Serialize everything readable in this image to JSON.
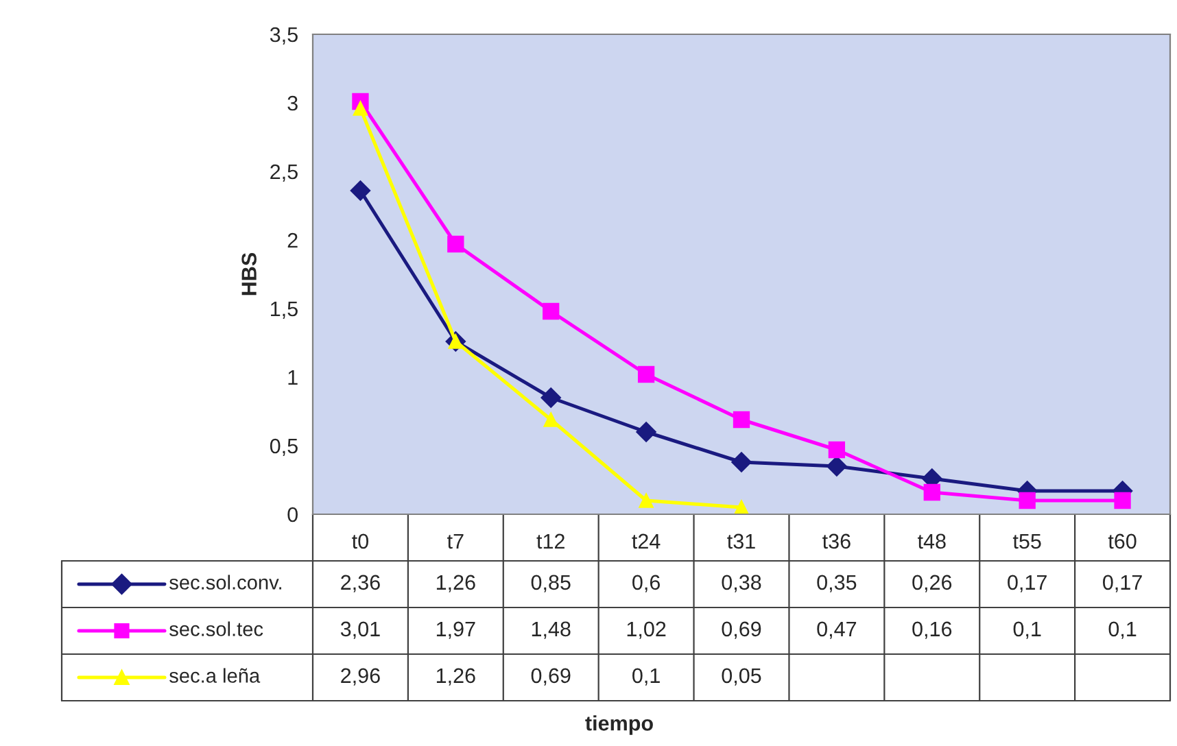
{
  "chart_data": {
    "type": "line",
    "annotations": [
      "tiempo"
    ],
    "ylabel": "HBS",
    "categories": [
      "t0",
      "t7",
      "t12",
      "t24",
      "t31",
      "t36",
      "t48",
      "t55",
      "t60"
    ],
    "series": [
      {
        "name": "sec.sol.conv.",
        "color": "#1a1a80",
        "marker": "diamond",
        "values": [
          2.36,
          1.26,
          0.85,
          0.6,
          0.38,
          0.35,
          0.26,
          0.17,
          0.17
        ],
        "value_labels": [
          "2,36",
          "1,26",
          "0,85",
          "0,6",
          "0,38",
          "0,35",
          "0,26",
          "0,17",
          "0,17"
        ]
      },
      {
        "name": "sec.sol.tec",
        "color": "#ff00ff",
        "marker": "square",
        "values": [
          3.01,
          1.97,
          1.48,
          1.02,
          0.69,
          0.47,
          0.16,
          0.1,
          0.1
        ],
        "value_labels": [
          "3,01",
          "1,97",
          "1,48",
          "1,02",
          "0,69",
          "0,47",
          "0,16",
          "0,1",
          "0,1"
        ]
      },
      {
        "name": "sec.a leña",
        "color": "#ffff00",
        "marker": "triangle",
        "values": [
          2.96,
          1.26,
          0.69,
          0.1,
          0.05,
          null,
          null,
          null,
          null
        ],
        "value_labels": [
          "2,96",
          "1,26",
          "0,69",
          "0,1",
          "0,05",
          null,
          null,
          null,
          null
        ]
      }
    ],
    "ylim": [
      0,
      3.5
    ],
    "yticks": [
      0,
      {
        "value": 0.5,
        "label": "0,5"
      },
      1,
      {
        "value": 1.5,
        "label": "1,5"
      },
      2,
      {
        "value": 2.5,
        "label": "2,5"
      },
      3,
      {
        "value": 3.5,
        "label": "3,5"
      }
    ],
    "grid": false,
    "legend": "bottom",
    "line_style": "solid"
  }
}
